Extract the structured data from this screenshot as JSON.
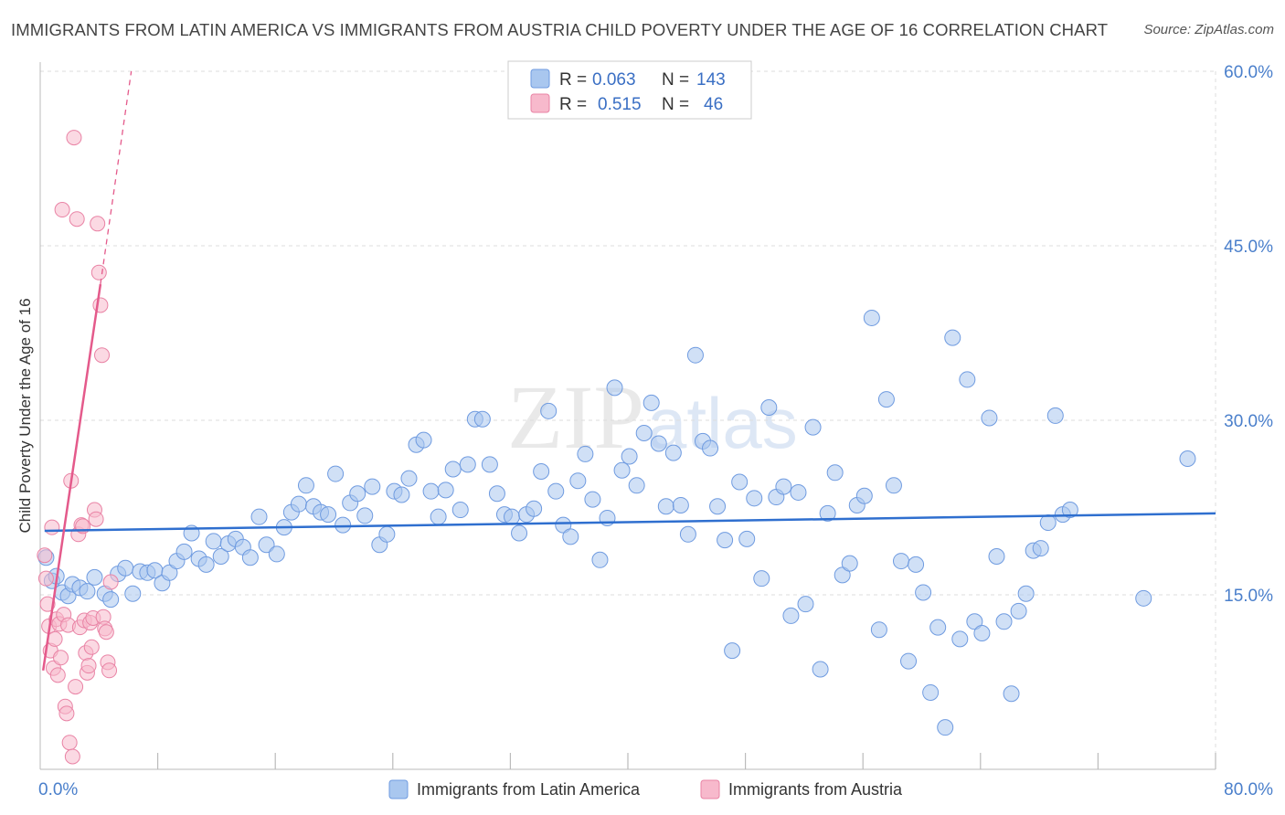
{
  "title": "IMMIGRANTS FROM LATIN AMERICA VS IMMIGRANTS FROM AUSTRIA CHILD POVERTY UNDER THE AGE OF 16 CORRELATION CHART",
  "source": "Source: ZipAtlas.com",
  "watermark": {
    "zip": "ZIP",
    "atlas": "atlas"
  },
  "colors": {
    "blue_fill": "#a9c7ef",
    "blue_stroke": "#6f9be0",
    "blue_line": "#2f6fcf",
    "pink_fill": "#f7b9cc",
    "pink_stroke": "#e983a5",
    "pink_line": "#e45a8b",
    "grid": "#dddddd",
    "axis_text": "#4a7fcb"
  },
  "legend": {
    "rows": [
      {
        "r_label": "R =",
        "r_value": "0.063",
        "n_label": "N =",
        "n_value": "143",
        "color": "blue"
      },
      {
        "r_label": "R =",
        "r_value": "0.515",
        "n_label": "N =",
        "n_value": "46",
        "color": "pink"
      }
    ]
  },
  "chart_data": {
    "type": "scatter",
    "title": "IMMIGRANTS FROM LATIN AMERICA VS IMMIGRANTS FROM AUSTRIA CHILD POVERTY UNDER THE AGE OF 16 CORRELATION CHART",
    "xlabel": "",
    "ylabel": "Child Poverty Under the Age of 16",
    "xlim": [
      0,
      80
    ],
    "ylim": [
      0,
      60
    ],
    "x_tick_labels": [
      {
        "value": 0,
        "label": "0.0%"
      },
      {
        "value": 80,
        "label": "80.0%"
      }
    ],
    "y_tick_labels": [
      {
        "value": 15,
        "label": "15.0%"
      },
      {
        "value": 30,
        "label": "30.0%"
      },
      {
        "value": 45,
        "label": "45.0%"
      },
      {
        "value": 60,
        "label": "60.0%"
      }
    ],
    "series": [
      {
        "name": "Immigrants from Latin America",
        "color": "blue",
        "R": 0.063,
        "N": 143,
        "trendline": {
          "x": [
            0.3,
            80
          ],
          "y": [
            20.5,
            22.0
          ]
        },
        "points": [
          [
            0.4,
            18.2
          ],
          [
            0.8,
            16.2
          ],
          [
            1.1,
            16.6
          ],
          [
            1.5,
            15.2
          ],
          [
            1.9,
            14.9
          ],
          [
            2.2,
            15.9
          ],
          [
            2.7,
            15.6
          ],
          [
            3.2,
            15.3
          ],
          [
            3.7,
            16.5
          ],
          [
            4.4,
            15.1
          ],
          [
            4.8,
            14.6
          ],
          [
            5.3,
            16.8
          ],
          [
            5.8,
            17.3
          ],
          [
            6.3,
            15.1
          ],
          [
            6.8,
            17.0
          ],
          [
            7.3,
            16.9
          ],
          [
            7.8,
            17.1
          ],
          [
            8.3,
            16.0
          ],
          [
            8.8,
            16.9
          ],
          [
            9.3,
            17.9
          ],
          [
            9.8,
            18.7
          ],
          [
            10.3,
            20.3
          ],
          [
            10.8,
            18.1
          ],
          [
            11.3,
            17.6
          ],
          [
            11.8,
            19.6
          ],
          [
            12.3,
            18.3
          ],
          [
            12.8,
            19.4
          ],
          [
            13.3,
            19.8
          ],
          [
            13.8,
            19.1
          ],
          [
            14.3,
            18.2
          ],
          [
            14.9,
            21.7
          ],
          [
            15.4,
            19.3
          ],
          [
            16.1,
            18.5
          ],
          [
            16.6,
            20.8
          ],
          [
            17.1,
            22.1
          ],
          [
            17.6,
            22.8
          ],
          [
            18.1,
            24.4
          ],
          [
            18.6,
            22.6
          ],
          [
            19.1,
            22.1
          ],
          [
            19.6,
            21.9
          ],
          [
            20.1,
            25.4
          ],
          [
            20.6,
            21.0
          ],
          [
            21.1,
            22.9
          ],
          [
            21.6,
            23.7
          ],
          [
            22.1,
            21.8
          ],
          [
            22.6,
            24.3
          ],
          [
            23.1,
            19.3
          ],
          [
            23.6,
            20.2
          ],
          [
            24.1,
            23.9
          ],
          [
            24.6,
            23.6
          ],
          [
            25.1,
            25.0
          ],
          [
            25.6,
            27.9
          ],
          [
            26.1,
            28.3
          ],
          [
            26.6,
            23.9
          ],
          [
            27.1,
            21.7
          ],
          [
            27.6,
            24.0
          ],
          [
            28.1,
            25.8
          ],
          [
            28.6,
            22.3
          ],
          [
            29.1,
            26.2
          ],
          [
            29.6,
            30.1
          ],
          [
            30.1,
            30.1
          ],
          [
            30.6,
            26.2
          ],
          [
            31.1,
            23.7
          ],
          [
            31.6,
            21.9
          ],
          [
            32.1,
            21.7
          ],
          [
            32.6,
            20.3
          ],
          [
            33.1,
            21.9
          ],
          [
            33.6,
            22.4
          ],
          [
            34.1,
            25.6
          ],
          [
            34.6,
            30.8
          ],
          [
            35.1,
            23.9
          ],
          [
            35.6,
            21.0
          ],
          [
            36.1,
            20.0
          ],
          [
            36.6,
            24.8
          ],
          [
            37.1,
            27.1
          ],
          [
            37.6,
            23.2
          ],
          [
            38.1,
            18.0
          ],
          [
            38.6,
            21.6
          ],
          [
            39.1,
            32.8
          ],
          [
            39.6,
            25.7
          ],
          [
            40.1,
            26.9
          ],
          [
            40.6,
            24.4
          ],
          [
            41.1,
            28.9
          ],
          [
            41.6,
            31.5
          ],
          [
            42.1,
            28.0
          ],
          [
            42.6,
            22.6
          ],
          [
            43.1,
            27.2
          ],
          [
            43.6,
            22.7
          ],
          [
            44.1,
            20.2
          ],
          [
            44.6,
            35.6
          ],
          [
            45.1,
            28.2
          ],
          [
            45.6,
            27.6
          ],
          [
            46.1,
            22.6
          ],
          [
            46.6,
            19.7
          ],
          [
            47.1,
            10.2
          ],
          [
            47.6,
            24.7
          ],
          [
            48.1,
            19.8
          ],
          [
            48.6,
            23.3
          ],
          [
            49.1,
            16.4
          ],
          [
            49.6,
            31.1
          ],
          [
            50.1,
            23.4
          ],
          [
            50.6,
            24.3
          ],
          [
            51.1,
            13.2
          ],
          [
            51.6,
            23.8
          ],
          [
            52.1,
            14.2
          ],
          [
            52.6,
            29.4
          ],
          [
            53.1,
            8.6
          ],
          [
            53.6,
            22.0
          ],
          [
            54.1,
            25.5
          ],
          [
            54.6,
            16.7
          ],
          [
            55.1,
            17.7
          ],
          [
            55.6,
            22.7
          ],
          [
            56.1,
            23.5
          ],
          [
            56.6,
            38.8
          ],
          [
            57.1,
            12.0
          ],
          [
            57.6,
            31.8
          ],
          [
            58.1,
            24.4
          ],
          [
            58.6,
            17.9
          ],
          [
            59.1,
            9.3
          ],
          [
            59.6,
            17.6
          ],
          [
            60.1,
            15.2
          ],
          [
            60.6,
            6.6
          ],
          [
            61.1,
            12.2
          ],
          [
            61.6,
            3.6
          ],
          [
            62.1,
            37.1
          ],
          [
            62.6,
            11.2
          ],
          [
            63.1,
            33.5
          ],
          [
            63.6,
            12.7
          ],
          [
            64.1,
            11.7
          ],
          [
            64.6,
            30.2
          ],
          [
            65.1,
            18.3
          ],
          [
            65.6,
            12.7
          ],
          [
            66.1,
            6.5
          ],
          [
            66.6,
            13.6
          ],
          [
            67.1,
            15.1
          ],
          [
            67.6,
            18.8
          ],
          [
            68.1,
            19.0
          ],
          [
            68.6,
            21.2
          ],
          [
            69.1,
            30.4
          ],
          [
            69.6,
            21.9
          ],
          [
            70.1,
            22.3
          ],
          [
            75.1,
            14.7
          ],
          [
            78.1,
            26.7
          ]
        ]
      },
      {
        "name": "Immigrants from Austria",
        "color": "pink",
        "R": 0.515,
        "N": 46,
        "trendline": {
          "x": [
            0.2,
            4.1
          ],
          "y": [
            8.5,
            41.7
          ]
        },
        "trendline_dashed": {
          "x": [
            4.1,
            6.2
          ],
          "y": [
            41.7,
            60.0
          ]
        },
        "points": [
          [
            0.3,
            18.4
          ],
          [
            0.4,
            16.4
          ],
          [
            0.5,
            14.2
          ],
          [
            0.6,
            12.3
          ],
          [
            0.7,
            10.2
          ],
          [
            0.8,
            20.8
          ],
          [
            0.9,
            8.7
          ],
          [
            1.0,
            11.2
          ],
          [
            1.1,
            12.9
          ],
          [
            1.2,
            8.1
          ],
          [
            1.3,
            12.5
          ],
          [
            1.4,
            9.6
          ],
          [
            1.5,
            48.1
          ],
          [
            1.6,
            13.3
          ],
          [
            1.7,
            5.4
          ],
          [
            1.8,
            4.8
          ],
          [
            1.9,
            12.4
          ],
          [
            2.0,
            2.3
          ],
          [
            2.1,
            24.8
          ],
          [
            2.2,
            1.1
          ],
          [
            2.3,
            54.3
          ],
          [
            2.4,
            7.1
          ],
          [
            2.5,
            47.3
          ],
          [
            2.6,
            20.2
          ],
          [
            2.7,
            12.2
          ],
          [
            2.8,
            21.0
          ],
          [
            2.9,
            20.9
          ],
          [
            3.0,
            12.8
          ],
          [
            3.1,
            10.0
          ],
          [
            3.2,
            8.3
          ],
          [
            3.3,
            8.9
          ],
          [
            3.4,
            12.6
          ],
          [
            3.5,
            10.5
          ],
          [
            3.6,
            13.0
          ],
          [
            3.7,
            22.3
          ],
          [
            3.8,
            21.5
          ],
          [
            3.9,
            46.9
          ],
          [
            4.0,
            42.7
          ],
          [
            4.1,
            39.9
          ],
          [
            4.2,
            35.6
          ],
          [
            4.3,
            13.1
          ],
          [
            4.4,
            12.1
          ],
          [
            4.5,
            11.8
          ],
          [
            4.6,
            9.2
          ],
          [
            4.7,
            8.5
          ],
          [
            4.8,
            16.1
          ]
        ]
      }
    ]
  },
  "bottom_legend": [
    {
      "label": "Immigrants from Latin America",
      "color": "blue"
    },
    {
      "label": "Immigrants from Austria",
      "color": "pink"
    }
  ]
}
